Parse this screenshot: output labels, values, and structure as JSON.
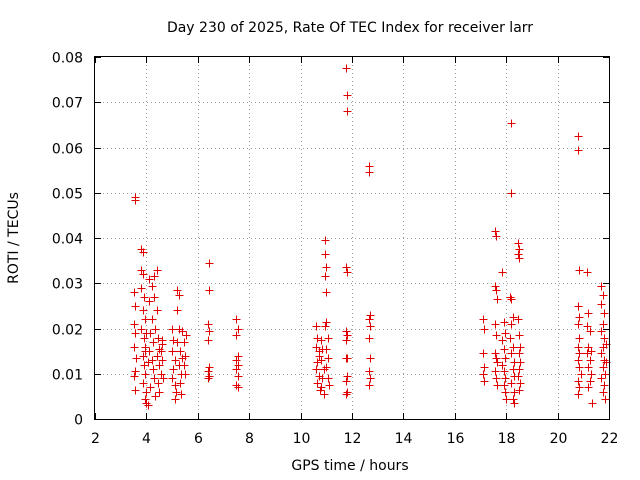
{
  "chart_data": {
    "type": "scatter",
    "title": "Day 230 of 2025, Rate Of TEC Index for receiver larr",
    "xlabel": "GPS time / hours",
    "ylabel": "ROTI / TECUs",
    "xlim": [
      2,
      22
    ],
    "ylim": [
      0,
      0.08
    ],
    "xticks": [
      2,
      4,
      6,
      8,
      10,
      12,
      14,
      16,
      18,
      20,
      22
    ],
    "yticks": [
      "0",
      "0.01",
      "0.02",
      "0.03",
      "0.04",
      "0.05",
      "0.06",
      "0.07",
      "0.08"
    ],
    "yticks_values": [
      0,
      0.01,
      0.02,
      0.03,
      0.04,
      0.05,
      0.06,
      0.07,
      0.08
    ],
    "grid": true,
    "marker": "+",
    "color": "#e00000",
    "points": [
      [
        3.55,
        0.0485
      ],
      [
        3.55,
        0.049
      ],
      [
        3.5,
        0.028
      ],
      [
        3.55,
        0.025
      ],
      [
        3.5,
        0.021
      ],
      [
        3.55,
        0.019
      ],
      [
        3.5,
        0.016
      ],
      [
        3.55,
        0.0105
      ],
      [
        3.5,
        0.0095
      ],
      [
        3.55,
        0.0065
      ],
      [
        3.6,
        0.0135
      ],
      [
        3.8,
        0.0375
      ],
      [
        3.85,
        0.037
      ],
      [
        3.8,
        0.033
      ],
      [
        3.85,
        0.032
      ],
      [
        3.8,
        0.029
      ],
      [
        3.9,
        0.027
      ],
      [
        3.85,
        0.024
      ],
      [
        3.95,
        0.022
      ],
      [
        3.8,
        0.02
      ],
      [
        3.9,
        0.018
      ],
      [
        3.95,
        0.016
      ],
      [
        3.85,
        0.014
      ],
      [
        3.9,
        0.012
      ],
      [
        3.95,
        0.01
      ],
      [
        3.85,
        0.008
      ],
      [
        4.0,
        0.006
      ],
      [
        3.95,
        0.0045
      ],
      [
        4.0,
        0.0035
      ],
      [
        4.05,
        0.003
      ],
      [
        3.95,
        0.015
      ],
      [
        4.0,
        0.019
      ],
      [
        4.05,
        0.0125
      ],
      [
        4.1,
        0.031
      ],
      [
        4.2,
        0.0295
      ],
      [
        4.1,
        0.026
      ],
      [
        4.2,
        0.022
      ],
      [
        4.15,
        0.019
      ],
      [
        4.25,
        0.017
      ],
      [
        4.1,
        0.015
      ],
      [
        4.2,
        0.013
      ],
      [
        4.25,
        0.011
      ],
      [
        4.3,
        0.009
      ],
      [
        4.15,
        0.007
      ],
      [
        4.35,
        0.005
      ],
      [
        4.3,
        0.0315
      ],
      [
        4.4,
        0.033
      ],
      [
        4.3,
        0.027
      ],
      [
        4.4,
        0.024
      ],
      [
        4.35,
        0.02
      ],
      [
        4.45,
        0.018
      ],
      [
        4.5,
        0.0155
      ],
      [
        4.4,
        0.014
      ],
      [
        4.5,
        0.012
      ],
      [
        4.55,
        0.01
      ],
      [
        4.45,
        0.008
      ],
      [
        4.5,
        0.006
      ],
      [
        4.6,
        0.0175
      ],
      [
        4.55,
        0.015
      ],
      [
        4.6,
        0.013
      ],
      [
        4.65,
        0.009
      ],
      [
        4.6,
        0.0165
      ],
      [
        5.0,
        0.02
      ],
      [
        5.05,
        0.0175
      ],
      [
        5.0,
        0.015
      ],
      [
        5.1,
        0.013
      ],
      [
        5.05,
        0.011
      ],
      [
        5.0,
        0.009
      ],
      [
        5.1,
        0.0075
      ],
      [
        5.15,
        0.006
      ],
      [
        5.1,
        0.0045
      ],
      [
        5.2,
        0.0285
      ],
      [
        5.25,
        0.0275
      ],
      [
        5.2,
        0.024
      ],
      [
        5.25,
        0.02
      ],
      [
        5.2,
        0.017
      ],
      [
        5.3,
        0.015
      ],
      [
        5.25,
        0.012
      ],
      [
        5.35,
        0.01
      ],
      [
        5.3,
        0.008
      ],
      [
        5.35,
        0.0055
      ],
      [
        5.4,
        0.0195
      ],
      [
        5.45,
        0.017
      ],
      [
        5.5,
        0.014
      ],
      [
        5.45,
        0.012
      ],
      [
        5.5,
        0.01
      ],
      [
        5.55,
        0.0185
      ],
      [
        5.4,
        0.0135
      ],
      [
        6.45,
        0.0345
      ],
      [
        6.45,
        0.0285
      ],
      [
        6.4,
        0.021
      ],
      [
        6.45,
        0.0195
      ],
      [
        6.4,
        0.0175
      ],
      [
        6.45,
        0.0115
      ],
      [
        6.4,
        0.0105
      ],
      [
        6.45,
        0.0095
      ],
      [
        6.4,
        0.009
      ],
      [
        7.5,
        0.022
      ],
      [
        7.55,
        0.02
      ],
      [
        7.5,
        0.0185
      ],
      [
        7.55,
        0.014
      ],
      [
        7.5,
        0.013
      ],
      [
        7.55,
        0.012
      ],
      [
        7.5,
        0.011
      ],
      [
        7.55,
        0.0095
      ],
      [
        7.5,
        0.0075
      ],
      [
        7.55,
        0.007
      ],
      [
        10.6,
        0.0205
      ],
      [
        10.65,
        0.018
      ],
      [
        10.6,
        0.016
      ],
      [
        10.7,
        0.014
      ],
      [
        10.65,
        0.0125
      ],
      [
        10.6,
        0.011
      ],
      [
        10.7,
        0.0095
      ],
      [
        10.65,
        0.008
      ],
      [
        10.75,
        0.0065
      ],
      [
        10.7,
        0.015
      ],
      [
        10.8,
        0.0175
      ],
      [
        10.85,
        0.0155
      ],
      [
        10.8,
        0.013
      ],
      [
        10.9,
        0.011
      ],
      [
        10.85,
        0.009
      ],
      [
        10.8,
        0.007
      ],
      [
        10.9,
        0.0055
      ],
      [
        10.95,
        0.0395
      ],
      [
        10.95,
        0.0365
      ],
      [
        11.0,
        0.0335
      ],
      [
        10.95,
        0.0315
      ],
      [
        11.0,
        0.028
      ],
      [
        11.0,
        0.0215
      ],
      [
        10.95,
        0.0205
      ],
      [
        11.05,
        0.018
      ],
      [
        11.0,
        0.0155
      ],
      [
        11.05,
        0.0135
      ],
      [
        11.0,
        0.0115
      ],
      [
        11.05,
        0.009
      ],
      [
        11.1,
        0.0075
      ],
      [
        11.75,
        0.0775
      ],
      [
        11.8,
        0.0715
      ],
      [
        11.8,
        0.068
      ],
      [
        11.75,
        0.0335
      ],
      [
        11.8,
        0.0325
      ],
      [
        11.75,
        0.0195
      ],
      [
        11.8,
        0.0185
      ],
      [
        11.75,
        0.0175
      ],
      [
        11.8,
        0.0135
      ],
      [
        11.75,
        0.0135
      ],
      [
        11.8,
        0.0095
      ],
      [
        11.75,
        0.0085
      ],
      [
        11.8,
        0.006
      ],
      [
        11.75,
        0.0055
      ],
      [
        12.65,
        0.056
      ],
      [
        12.65,
        0.0545
      ],
      [
        12.7,
        0.023
      ],
      [
        12.65,
        0.022
      ],
      [
        12.7,
        0.0205
      ],
      [
        12.65,
        0.018
      ],
      [
        12.7,
        0.0135
      ],
      [
        12.65,
        0.0105
      ],
      [
        12.7,
        0.009
      ],
      [
        12.65,
        0.0075
      ],
      [
        17.1,
        0.022
      ],
      [
        17.15,
        0.02
      ],
      [
        17.1,
        0.0145
      ],
      [
        17.15,
        0.0115
      ],
      [
        17.1,
        0.01
      ],
      [
        17.15,
        0.0085
      ],
      [
        17.55,
        0.0415
      ],
      [
        17.6,
        0.0405
      ],
      [
        17.55,
        0.0295
      ],
      [
        17.6,
        0.0285
      ],
      [
        17.65,
        0.0265
      ],
      [
        17.55,
        0.021
      ],
      [
        17.6,
        0.0185
      ],
      [
        17.55,
        0.0145
      ],
      [
        17.6,
        0.0135
      ],
      [
        17.65,
        0.0125
      ],
      [
        17.55,
        0.0105
      ],
      [
        17.6,
        0.009
      ],
      [
        17.65,
        0.0075
      ],
      [
        17.85,
        0.0325
      ],
      [
        17.9,
        0.0215
      ],
      [
        17.95,
        0.019
      ],
      [
        17.85,
        0.0175
      ],
      [
        17.9,
        0.0155
      ],
      [
        17.95,
        0.0135
      ],
      [
        17.85,
        0.012
      ],
      [
        17.9,
        0.0105
      ],
      [
        17.95,
        0.009
      ],
      [
        17.9,
        0.0075
      ],
      [
        17.95,
        0.006
      ],
      [
        18.0,
        0.0045
      ],
      [
        18.2,
        0.0655
      ],
      [
        18.2,
        0.05
      ],
      [
        18.15,
        0.027
      ],
      [
        18.2,
        0.0265
      ],
      [
        18.25,
        0.0225
      ],
      [
        18.2,
        0.021
      ],
      [
        18.15,
        0.018
      ],
      [
        18.25,
        0.016
      ],
      [
        18.2,
        0.0145
      ],
      [
        18.3,
        0.0125
      ],
      [
        18.25,
        0.011
      ],
      [
        18.3,
        0.0095
      ],
      [
        18.2,
        0.008
      ],
      [
        18.3,
        0.006
      ],
      [
        18.25,
        0.0045
      ],
      [
        18.3,
        0.0035
      ],
      [
        18.45,
        0.039
      ],
      [
        18.5,
        0.0375
      ],
      [
        18.45,
        0.0365
      ],
      [
        18.5,
        0.0355
      ],
      [
        18.45,
        0.022
      ],
      [
        18.5,
        0.0185
      ],
      [
        18.55,
        0.016
      ],
      [
        18.5,
        0.0145
      ],
      [
        18.55,
        0.0125
      ],
      [
        18.5,
        0.011
      ],
      [
        18.45,
        0.0095
      ],
      [
        18.55,
        0.008
      ],
      [
        18.5,
        0.0065
      ],
      [
        20.8,
        0.0625
      ],
      [
        20.8,
        0.0595
      ],
      [
        20.85,
        0.033
      ],
      [
        20.8,
        0.025
      ],
      [
        20.85,
        0.0225
      ],
      [
        20.8,
        0.021
      ],
      [
        20.85,
        0.018
      ],
      [
        20.8,
        0.016
      ],
      [
        20.85,
        0.0145
      ],
      [
        20.8,
        0.013
      ],
      [
        20.85,
        0.0115
      ],
      [
        20.9,
        0.01
      ],
      [
        20.8,
        0.0085
      ],
      [
        20.85,
        0.007
      ],
      [
        20.8,
        0.0055
      ],
      [
        21.15,
        0.0325
      ],
      [
        21.2,
        0.0235
      ],
      [
        21.15,
        0.0205
      ],
      [
        21.25,
        0.0195
      ],
      [
        21.2,
        0.016
      ],
      [
        21.15,
        0.0145
      ],
      [
        21.25,
        0.013
      ],
      [
        21.2,
        0.0115
      ],
      [
        21.3,
        0.01
      ],
      [
        21.25,
        0.0085
      ],
      [
        21.2,
        0.007
      ],
      [
        21.35,
        0.0035
      ],
      [
        21.3,
        0.015
      ],
      [
        21.7,
        0.0295
      ],
      [
        21.75,
        0.0275
      ],
      [
        21.7,
        0.0255
      ],
      [
        21.8,
        0.0235
      ],
      [
        21.75,
        0.021
      ],
      [
        21.7,
        0.0195
      ],
      [
        21.8,
        0.018
      ],
      [
        21.75,
        0.016
      ],
      [
        21.7,
        0.0145
      ],
      [
        21.8,
        0.013
      ],
      [
        21.75,
        0.0115
      ],
      [
        21.85,
        0.01
      ],
      [
        21.7,
        0.009
      ],
      [
        21.8,
        0.0075
      ],
      [
        21.75,
        0.006
      ],
      [
        21.85,
        0.0045
      ],
      [
        21.9,
        0.0125
      ],
      [
        21.9,
        0.0165
      ]
    ]
  }
}
